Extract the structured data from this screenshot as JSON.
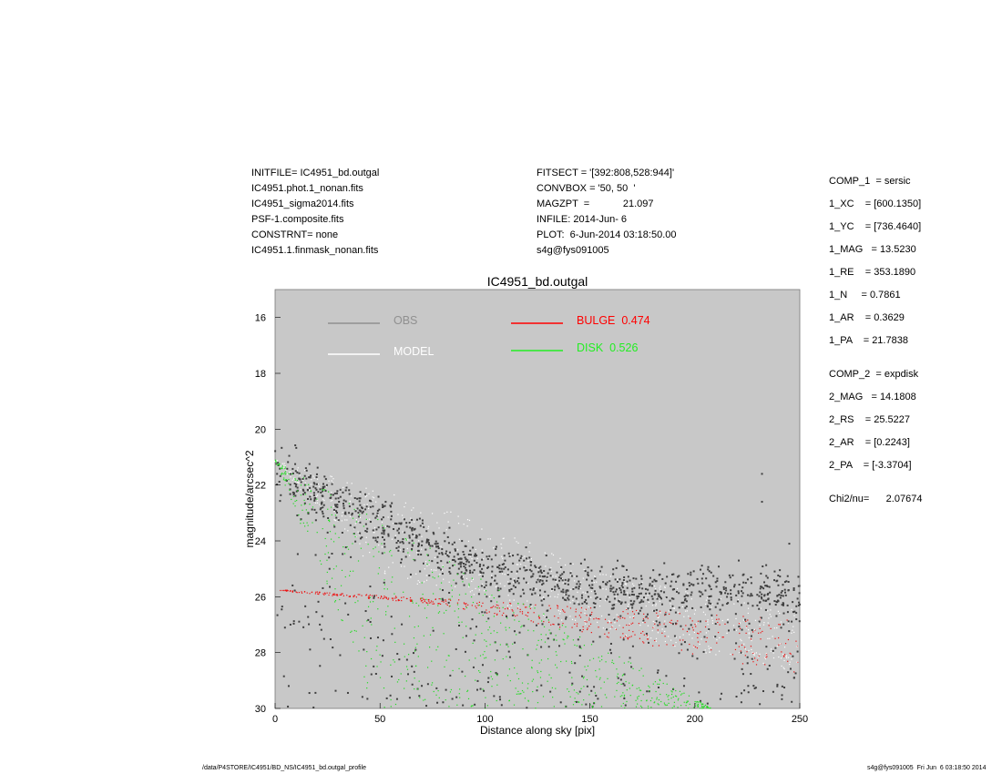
{
  "header_left": [
    "INITFILE= IC4951_bd.outgal",
    "IC4951.phot.1_nonan.fits",
    "IC4951_sigma2014.fits",
    "PSF-1.composite.fits",
    "CONSTRNT= none",
    "IC4951.1.finmask_nonan.fits"
  ],
  "header_mid": [
    "FITSECT = '[392:808,528:944]'",
    "CONVBOX = '50, 50  '",
    "MAGZPT  =            21.097",
    "INFILE: 2014-Jun- 6",
    "PLOT:  6-Jun-2014 03:18:50.00",
    "s4g@fys091005"
  ],
  "params_comp1": [
    "COMP_1  = sersic",
    "1_XC    = [600.1350]",
    "1_YC    = [736.4640]",
    "1_MAG   = 13.5230",
    "1_RE    = 353.1890",
    "1_N     = 0.7861",
    "1_AR    = 0.3629",
    "1_PA    = 21.7838"
  ],
  "params_comp2": [
    "COMP_2  = expdisk",
    "2_MAG   = 14.1808",
    "2_RS    = 25.5227",
    "2_AR    = [0.2243]",
    "2_PA    = [-3.3704]"
  ],
  "chi2": "Chi2/nu=      2.07674",
  "footer_left": "/data/P4STORE/IC4951/BD_NS/IC4951_bd.outgal_profile",
  "footer_right": "s4g@fys091005  Fri Jun  6 03:18:50 2014",
  "chart_data": {
    "type": "scatter",
    "title": "IC4951_bd.outgal",
    "xlabel": "Distance along sky [pix]",
    "ylabel": "magnitude/arcsec^2",
    "xlim": [
      0,
      250
    ],
    "ylim": [
      15,
      30
    ],
    "y_inverted": true,
    "xticks": [
      0,
      50,
      100,
      150,
      200,
      250
    ],
    "yticks": [
      16,
      18,
      20,
      22,
      24,
      26,
      28,
      30
    ],
    "background": "#c8c8c8",
    "legend": [
      {
        "label": "OBS",
        "color": "#909090"
      },
      {
        "label": "MODEL",
        "color": "#ffffff"
      },
      {
        "label": "BULGE  0.474",
        "color": "#ff0000"
      },
      {
        "label": "DISK  0.526",
        "color": "#22ee22"
      }
    ],
    "series": [
      {
        "name": "DISK",
        "color": "#22dd22",
        "kind": "band",
        "count": 700,
        "upper": [
          [
            0,
            21.1
          ],
          [
            208,
            30
          ]
        ],
        "lower": [
          [
            0,
            21.1
          ],
          [
            47,
            30
          ]
        ],
        "xrange": [
          0,
          208
        ]
      },
      {
        "name": "BULGE",
        "color": "#ee1111",
        "kind": "band",
        "count": 450,
        "upper": [
          [
            2,
            25.75
          ],
          [
            250,
            26.8
          ]
        ],
        "lower": [
          [
            2,
            25.8
          ],
          [
            80,
            26.3
          ],
          [
            250,
            28.8
          ]
        ],
        "xrange": [
          2,
          250
        ]
      },
      {
        "name": "MODEL",
        "color": "#ffffff",
        "kind": "band",
        "count": 650,
        "upper": [
          [
            0,
            21.1
          ],
          [
            100,
            23.3
          ],
          [
            150,
            25.1
          ],
          [
            250,
            26.5
          ]
        ],
        "lower": [
          [
            0,
            21.2
          ],
          [
            50,
            25.2
          ],
          [
            110,
            26.4
          ],
          [
            250,
            28.8
          ]
        ],
        "xrange": [
          0,
          250
        ]
      },
      {
        "name": "OBS",
        "color": "#404040",
        "kind": "cloud",
        "count": 1300,
        "center": [
          [
            0,
            21.4
          ],
          [
            50,
            23.4
          ],
          [
            100,
            25.0
          ],
          [
            150,
            25.7
          ],
          [
            250,
            25.9
          ]
        ],
        "spread": 0.9,
        "outlier_fraction": 0.25,
        "highlights": [
          [
            232,
            21.6
          ],
          [
            232,
            22.6
          ],
          [
            245,
            24.1
          ]
        ]
      }
    ]
  }
}
